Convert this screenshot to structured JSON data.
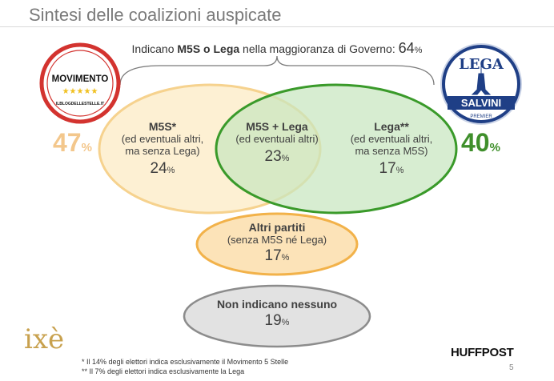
{
  "title": "Sintesi delle coalizioni auspicate",
  "top_caption": {
    "pre": "Indicano ",
    "bold": "M5S o Lega",
    "post": " nella maggioranza di Governo: ",
    "value": "64",
    "unit": "%"
  },
  "m5s": {
    "label": "M5S*",
    "sub1": "(ed eventuali altri,",
    "sub2": "ma senza Lega)",
    "value": "24",
    "unit": "%"
  },
  "both": {
    "label": "M5S + Lega",
    "sub1": "(ed eventuali altri)",
    "value": "23",
    "unit": "%"
  },
  "lega": {
    "label": "Lega**",
    "sub1": "(ed eventuali altri,",
    "sub2": "ma senza M5S)",
    "value": "17",
    "unit": "%"
  },
  "altri": {
    "label": "Altri partiti",
    "sub1": "(senza M5S né Lega)",
    "value": "17",
    "unit": "%"
  },
  "nessuno": {
    "label": "Non indicano nessuno",
    "value": "19",
    "unit": "%"
  },
  "m5s_total": {
    "value": "47",
    "unit": "%"
  },
  "lega_total": {
    "value": "40",
    "unit": "%"
  },
  "logos": {
    "movimento": {
      "text": "MOVIMENTO",
      "arc": "ILBLOGDELLESTELLE.IT",
      "stars": "★★★★★"
    },
    "lega": {
      "top": "LEGA",
      "name": "SALVINI",
      "sub": "PREMIER"
    },
    "ixe": "ixè",
    "huffpost": "HUFFPOST"
  },
  "footnotes": [
    "* Il 14% degli elettori indica esclusivamente il Movimento 5 Stelle",
    "** Il 7% degli elettori indica esclusivamente la Lega"
  ],
  "page_number": "5",
  "colors": {
    "m5s_fill": "#fdf0d3",
    "m5s_stroke": "#f6d28e",
    "lega_fill": "#c7e6bf",
    "lega_stroke": "#3a9a2a",
    "altri_fill": "#fce3b8",
    "altri_stroke": "#f2b24a",
    "nessuno_fill": "#e2e2e2",
    "nessuno_stroke": "#8c8c8c"
  }
}
